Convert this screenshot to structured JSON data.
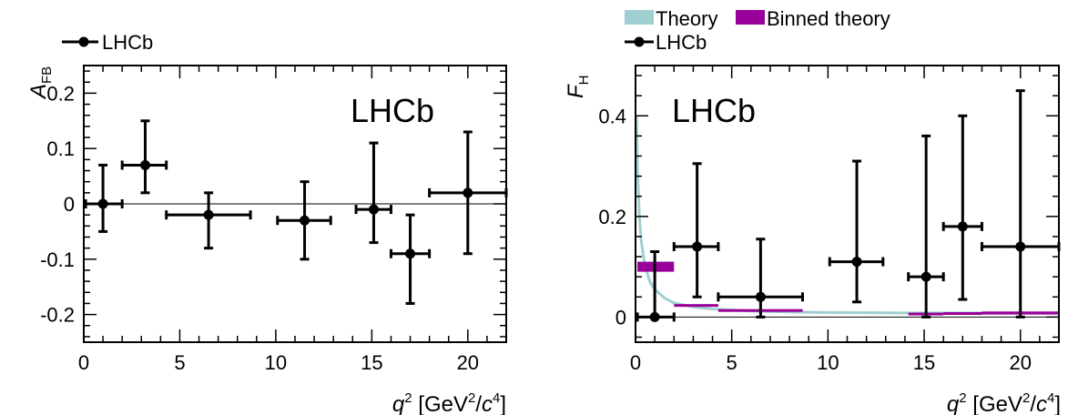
{
  "chart_data": [
    {
      "type": "scatter",
      "plot_label": "LHCb",
      "ylabel": "A",
      "ylabel_sub": "FB",
      "xlabel": {
        "var": "q",
        "exp": "2",
        "unit_open": " [GeV",
        "unit_exp1": "2",
        "unit_mid": "/",
        "unit_var": "c",
        "unit_exp2": "4",
        "unit_close": "]"
      },
      "xlim": [
        0,
        22
      ],
      "ylim": [
        -0.25,
        0.25
      ],
      "xticks": [
        0,
        5,
        10,
        15,
        20
      ],
      "xticklabels": [
        "0",
        "5",
        "10",
        "15",
        "20"
      ],
      "yticks": [
        -0.2,
        -0.1,
        0,
        0.1,
        0.2
      ],
      "yticklabels": [
        "-0.2",
        "-0.1",
        "0",
        "0.1",
        "0.2"
      ],
      "zero_line": true,
      "legend": [
        {
          "label": "LHCb",
          "style": "marker-line",
          "color": "#000000"
        }
      ],
      "series": [
        {
          "name": "LHCb",
          "points": [
            {
              "x": 1.0,
              "xlo": 0.1,
              "xhi": 2.0,
              "y": 0.0,
              "ylo": -0.05,
              "yhi": 0.07
            },
            {
              "x": 3.2,
              "xlo": 2.0,
              "xhi": 4.3,
              "y": 0.07,
              "ylo": 0.02,
              "yhi": 0.15
            },
            {
              "x": 6.5,
              "xlo": 4.3,
              "xhi": 8.68,
              "y": -0.02,
              "ylo": -0.08,
              "yhi": 0.02
            },
            {
              "x": 11.5,
              "xlo": 10.09,
              "xhi": 12.86,
              "y": -0.03,
              "ylo": -0.1,
              "yhi": 0.04
            },
            {
              "x": 15.1,
              "xlo": 14.18,
              "xhi": 16.0,
              "y": -0.01,
              "ylo": -0.07,
              "yhi": 0.11
            },
            {
              "x": 17.0,
              "xlo": 16.0,
              "xhi": 18.0,
              "y": -0.09,
              "ylo": -0.18,
              "yhi": -0.02
            },
            {
              "x": 20.0,
              "xlo": 18.0,
              "xhi": 22.0,
              "y": 0.02,
              "ylo": -0.09,
              "yhi": 0.13
            }
          ]
        }
      ]
    },
    {
      "type": "scatter",
      "plot_label": "LHCb",
      "ylabel": "F",
      "ylabel_sub": "H",
      "xlabel": {
        "var": "q",
        "exp": "2",
        "unit_open": " [GeV",
        "unit_exp1": "2",
        "unit_mid": "/",
        "unit_var": "c",
        "unit_exp2": "4",
        "unit_close": "]"
      },
      "xlim": [
        0,
        22
      ],
      "ylim": [
        -0.05,
        0.5
      ],
      "xticks": [
        0,
        5,
        10,
        15,
        20
      ],
      "xticklabels": [
        "0",
        "5",
        "10",
        "15",
        "20"
      ],
      "yticks": [
        0,
        0.2,
        0.4
      ],
      "yticklabels": [
        "0",
        "0.2",
        "0.4"
      ],
      "zero_line": true,
      "legend": [
        {
          "label": "Theory",
          "style": "box",
          "color": "#9fcfd1"
        },
        {
          "label": "Binned theory",
          "style": "box",
          "color": "#990099"
        },
        {
          "label": "LHCb",
          "style": "marker-line",
          "color": "#000000"
        }
      ],
      "theory_curve": {
        "name": "Theory",
        "color": "#9fcfd1",
        "x": [
          0.05,
          0.1,
          0.2,
          0.3,
          0.5,
          0.75,
          1.0,
          1.5,
          2.0,
          3.0,
          4.0,
          6.0,
          8.0,
          10.0,
          14.0,
          18.0,
          22.0
        ],
        "y": [
          0.4,
          0.3,
          0.2,
          0.15,
          0.1,
          0.07,
          0.055,
          0.038,
          0.028,
          0.02,
          0.016,
          0.012,
          0.01,
          0.009,
          0.008,
          0.008,
          0.008
        ]
      },
      "binned_theory": {
        "name": "Binned theory",
        "color": "#990099",
        "bins": [
          {
            "xlo": 0.1,
            "xhi": 2.0,
            "y": 0.1,
            "err": 0.01
          },
          {
            "xlo": 2.0,
            "xhi": 4.3,
            "y": 0.023,
            "err": 0.002
          },
          {
            "xlo": 4.3,
            "xhi": 8.68,
            "y": 0.013,
            "err": 0.002
          },
          {
            "xlo": 14.18,
            "xhi": 16.0,
            "y": 0.006,
            "err": 0.002
          },
          {
            "xlo": 16.0,
            "xhi": 18.0,
            "y": 0.007,
            "err": 0.002
          },
          {
            "xlo": 18.0,
            "xhi": 22.0,
            "y": 0.008,
            "err": 0.003
          }
        ]
      },
      "series": [
        {
          "name": "LHCb",
          "points": [
            {
              "x": 1.0,
              "xlo": 0.1,
              "xhi": 2.0,
              "y": 0.0,
              "ylo": 0.0,
              "yhi": 0.13
            },
            {
              "x": 3.2,
              "xlo": 2.0,
              "xhi": 4.3,
              "y": 0.14,
              "ylo": 0.04,
              "yhi": 0.305
            },
            {
              "x": 6.5,
              "xlo": 4.3,
              "xhi": 8.68,
              "y": 0.04,
              "ylo": 0.0,
              "yhi": 0.155
            },
            {
              "x": 11.5,
              "xlo": 10.09,
              "xhi": 12.86,
              "y": 0.11,
              "ylo": 0.03,
              "yhi": 0.31
            },
            {
              "x": 15.1,
              "xlo": 14.18,
              "xhi": 16.0,
              "y": 0.08,
              "ylo": 0.0,
              "yhi": 0.36
            },
            {
              "x": 17.0,
              "xlo": 16.0,
              "xhi": 18.0,
              "y": 0.18,
              "ylo": 0.035,
              "yhi": 0.4
            },
            {
              "x": 20.0,
              "xlo": 18.0,
              "xhi": 22.0,
              "y": 0.14,
              "ylo": 0.0,
              "yhi": 0.45
            }
          ]
        }
      ]
    }
  ]
}
